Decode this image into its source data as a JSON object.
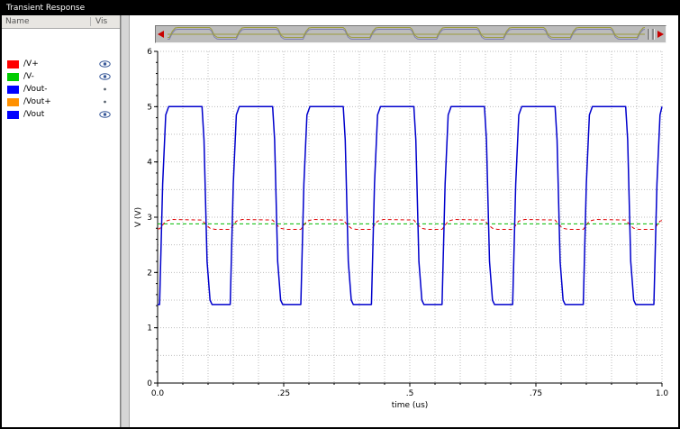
{
  "window": {
    "title": "Transient Response"
  },
  "panel": {
    "name_header": "Name",
    "vis_header": "Vis",
    "signals": [
      {
        "label": "/V+",
        "color": "#ff0000",
        "vis": "eye"
      },
      {
        "label": "/V-",
        "color": "#00cc00",
        "vis": "eye"
      },
      {
        "label": "/Vout-",
        "color": "#0000ff",
        "vis": "dot"
      },
      {
        "label": "/Vout+",
        "color": "#ff9000",
        "vis": "dot"
      },
      {
        "label": "/Vout",
        "color": "#0000ff",
        "vis": "eye"
      }
    ]
  },
  "pan_strip": {
    "arrow_color": "#c80000",
    "wave_color_purple": "#7d7dad",
    "wave_color_olive": "#9c9c3c"
  },
  "chart_data": {
    "type": "line",
    "title": "Transient Response",
    "xlabel": "time (us)",
    "ylabel": "V (V)",
    "xlim": [
      0,
      1
    ],
    "ylim": [
      0,
      6
    ],
    "x_ticks": {
      "values": [
        0,
        0.25,
        0.5,
        0.75,
        1.0
      ],
      "labels": [
        "0.0",
        ".25",
        ".5",
        ".75",
        "1.0"
      ]
    },
    "y_ticks": {
      "values": [
        0,
        1,
        2,
        3,
        4,
        5,
        6
      ],
      "labels": [
        "0",
        "1",
        "2",
        "3",
        "4",
        "5",
        "6"
      ]
    },
    "x_minor_step": 0.05,
    "y_minor_step": 0.2,
    "grid": {
      "x_step": 0.05,
      "y_step": 0.5,
      "color": "#bdbdbd",
      "on": true
    },
    "legend_position": "left-panel",
    "series": [
      {
        "name": "/V+",
        "color": "#dd0000",
        "style": "dashed",
        "width": 1,
        "points": [
          [
            0.0,
            2.79
          ],
          [
            0.004,
            2.79
          ],
          [
            0.016,
            2.93
          ],
          [
            0.028,
            2.96
          ],
          [
            0.088,
            2.95
          ],
          [
            0.096,
            2.86
          ],
          [
            0.104,
            2.8
          ],
          [
            0.114,
            2.78
          ],
          [
            0.144,
            2.78
          ],
          [
            0.156,
            2.93
          ],
          [
            0.168,
            2.96
          ],
          [
            0.228,
            2.95
          ],
          [
            0.236,
            2.86
          ],
          [
            0.244,
            2.8
          ],
          [
            0.254,
            2.78
          ],
          [
            0.284,
            2.78
          ],
          [
            0.296,
            2.93
          ],
          [
            0.308,
            2.96
          ],
          [
            0.368,
            2.95
          ],
          [
            0.376,
            2.86
          ],
          [
            0.384,
            2.8
          ],
          [
            0.394,
            2.78
          ],
          [
            0.424,
            2.78
          ],
          [
            0.436,
            2.93
          ],
          [
            0.448,
            2.96
          ],
          [
            0.508,
            2.95
          ],
          [
            0.516,
            2.86
          ],
          [
            0.524,
            2.8
          ],
          [
            0.534,
            2.78
          ],
          [
            0.564,
            2.78
          ],
          [
            0.576,
            2.93
          ],
          [
            0.588,
            2.96
          ],
          [
            0.648,
            2.95
          ],
          [
            0.656,
            2.86
          ],
          [
            0.664,
            2.8
          ],
          [
            0.674,
            2.78
          ],
          [
            0.704,
            2.78
          ],
          [
            0.716,
            2.93
          ],
          [
            0.728,
            2.96
          ],
          [
            0.788,
            2.95
          ],
          [
            0.796,
            2.86
          ],
          [
            0.804,
            2.8
          ],
          [
            0.814,
            2.78
          ],
          [
            0.844,
            2.78
          ],
          [
            0.856,
            2.93
          ],
          [
            0.868,
            2.96
          ],
          [
            0.928,
            2.95
          ],
          [
            0.936,
            2.86
          ],
          [
            0.944,
            2.8
          ],
          [
            0.954,
            2.78
          ],
          [
            0.984,
            2.78
          ],
          [
            0.996,
            2.93
          ],
          [
            1.0,
            2.94
          ]
        ]
      },
      {
        "name": "/V-",
        "color": "#00bb00",
        "style": "dashed",
        "width": 1,
        "points": [
          [
            0.0,
            2.88
          ],
          [
            1.0,
            2.88
          ]
        ]
      },
      {
        "name": "/Vout",
        "color": "#0000cc",
        "style": "solid",
        "width": 1.5,
        "points": [
          [
            0.0,
            1.42
          ],
          [
            0.004,
            1.42
          ],
          [
            0.01,
            3.6
          ],
          [
            0.016,
            4.85
          ],
          [
            0.022,
            5.0
          ],
          [
            0.088,
            5.0
          ],
          [
            0.092,
            4.4
          ],
          [
            0.098,
            2.2
          ],
          [
            0.104,
            1.5
          ],
          [
            0.108,
            1.42
          ],
          [
            0.144,
            1.42
          ],
          [
            0.15,
            3.6
          ],
          [
            0.156,
            4.85
          ],
          [
            0.162,
            5.0
          ],
          [
            0.228,
            5.0
          ],
          [
            0.232,
            4.4
          ],
          [
            0.238,
            2.2
          ],
          [
            0.244,
            1.5
          ],
          [
            0.248,
            1.42
          ],
          [
            0.284,
            1.42
          ],
          [
            0.29,
            3.6
          ],
          [
            0.296,
            4.85
          ],
          [
            0.302,
            5.0
          ],
          [
            0.368,
            5.0
          ],
          [
            0.372,
            4.4
          ],
          [
            0.378,
            2.2
          ],
          [
            0.384,
            1.5
          ],
          [
            0.388,
            1.42
          ],
          [
            0.424,
            1.42
          ],
          [
            0.43,
            3.6
          ],
          [
            0.436,
            4.85
          ],
          [
            0.442,
            5.0
          ],
          [
            0.508,
            5.0
          ],
          [
            0.512,
            4.4
          ],
          [
            0.518,
            2.2
          ],
          [
            0.524,
            1.5
          ],
          [
            0.528,
            1.42
          ],
          [
            0.564,
            1.42
          ],
          [
            0.57,
            3.6
          ],
          [
            0.576,
            4.85
          ],
          [
            0.582,
            5.0
          ],
          [
            0.648,
            5.0
          ],
          [
            0.652,
            4.4
          ],
          [
            0.658,
            2.2
          ],
          [
            0.664,
            1.5
          ],
          [
            0.668,
            1.42
          ],
          [
            0.704,
            1.42
          ],
          [
            0.71,
            3.6
          ],
          [
            0.716,
            4.85
          ],
          [
            0.722,
            5.0
          ],
          [
            0.788,
            5.0
          ],
          [
            0.792,
            4.4
          ],
          [
            0.798,
            2.2
          ],
          [
            0.804,
            1.5
          ],
          [
            0.808,
            1.42
          ],
          [
            0.844,
            1.42
          ],
          [
            0.85,
            3.6
          ],
          [
            0.856,
            4.85
          ],
          [
            0.862,
            5.0
          ],
          [
            0.928,
            5.0
          ],
          [
            0.932,
            4.4
          ],
          [
            0.938,
            2.2
          ],
          [
            0.944,
            1.5
          ],
          [
            0.948,
            1.42
          ],
          [
            0.984,
            1.42
          ],
          [
            0.99,
            3.6
          ],
          [
            0.996,
            4.85
          ],
          [
            1.0,
            5.0
          ]
        ]
      }
    ]
  }
}
